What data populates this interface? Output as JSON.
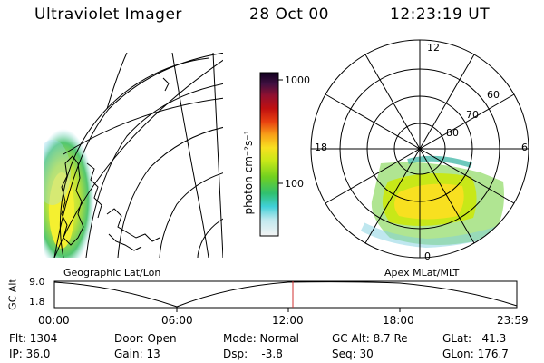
{
  "header": {
    "title": "Ultraviolet Imager",
    "date": "28 Oct 00",
    "time": "12:23:19 UT"
  },
  "colorbar": {
    "unit_label": "photon cm⁻²s⁻¹",
    "ticks": [
      "1000",
      "100"
    ]
  },
  "geo_panel": {
    "caption": "Geographic Lat/Lon"
  },
  "polar_panel": {
    "caption": "Apex MLat/MLT",
    "mlt_labels": [
      "12",
      "18",
      "6",
      "0"
    ],
    "lat_labels": [
      "60",
      "70",
      "80"
    ]
  },
  "orbit": {
    "ylabel": "GC Alt",
    "y_ticks": [
      "9.0",
      "1.8"
    ],
    "x_ticks": [
      "00:00",
      "06:00",
      "12:00",
      "18:00",
      "23:59"
    ]
  },
  "status": {
    "flt": "Flt: 1304",
    "ip": "IP: 36.0",
    "door": "Door: Open",
    "gain": "Gain: 13",
    "mode": "Mode: Normal",
    "dsp": "Dsp:    -3.8",
    "gcalt": "GC Alt: 8.7 Re",
    "seq": "Seq: 30",
    "glat": "GLat:   41.3",
    "glon": "GLon: 176.7"
  },
  "colors": {
    "accent_marker": "#d03030"
  }
}
